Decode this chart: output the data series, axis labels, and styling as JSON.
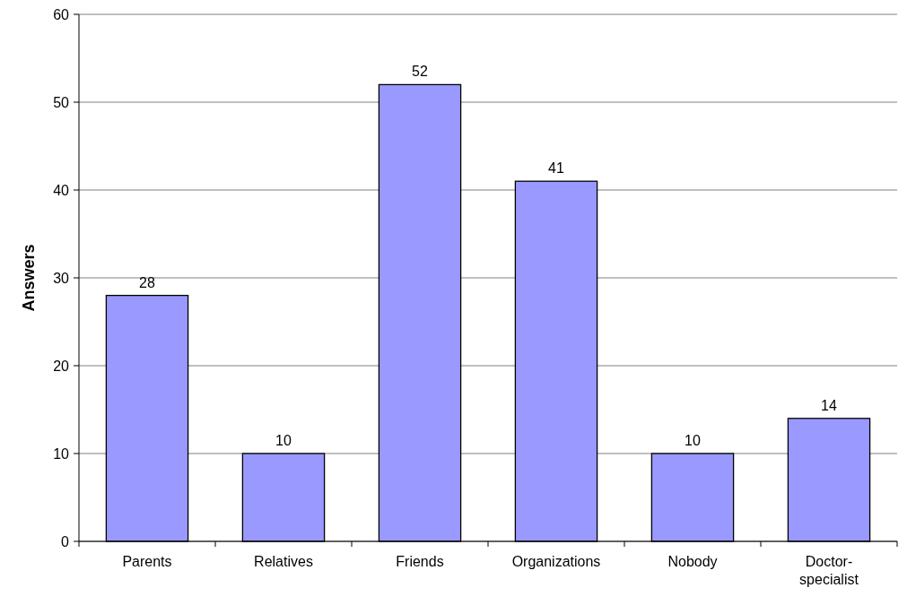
{
  "chart_data": {
    "type": "bar",
    "ylabel": "Answers",
    "categories": [
      "Parents",
      "Relatives",
      "Friends",
      "Organizations",
      "Nobody",
      "Doctor-specialist"
    ],
    "values": [
      28,
      10,
      52,
      41,
      10,
      14
    ],
    "color": "#9999ff",
    "ylim": [
      0,
      60
    ],
    "yticks": [
      0,
      10,
      20,
      30,
      40,
      50,
      60
    ],
    "grid": "y",
    "data_labels": true
  }
}
